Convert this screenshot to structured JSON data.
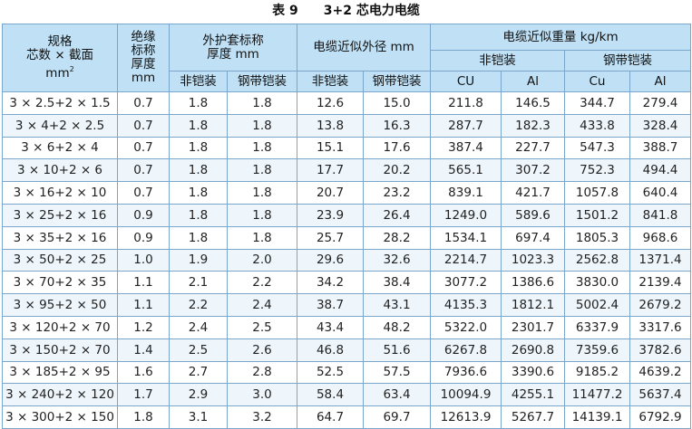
{
  "caption": {
    "number": "表 9",
    "text": "3+2 芯电力电缆"
  },
  "headers": {
    "spec_line1": "规格",
    "spec_line2": "芯数 × 截面",
    "spec_line3": "mm",
    "spec_unit_sup": "2",
    "insul_line1": "绝缘",
    "insul_line2": "标称",
    "insul_line3": "厚度",
    "insul_line4": "mm",
    "sheath_line1": "外护套标称",
    "sheath_line2": "厚度 mm",
    "diameter": "电缆近似外径 mm",
    "weight": "电缆近似重量 kg/km",
    "unarmored": "非铠装",
    "armored": "钢带铠装",
    "cu_upper": "CU",
    "al": "Al",
    "cu_mixed": "Cu"
  },
  "rows": [
    [
      "3 × 2.5+2 × 1.5",
      "0.7",
      "1.8",
      "1.8",
      "12.6",
      "15.0",
      "211.8",
      "146.5",
      "344.7",
      "279.4"
    ],
    [
      "3 × 4+2 × 2.5",
      "0.7",
      "1.8",
      "1.8",
      "13.8",
      "16.3",
      "287.7",
      "182.3",
      "433.8",
      "328.4"
    ],
    [
      "3 × 6+2 × 4",
      "0.7",
      "1.8",
      "1.8",
      "15.1",
      "17.6",
      "387.4",
      "227.7",
      "547.3",
      "388.7"
    ],
    [
      "3 × 10+2 × 6",
      "0.7",
      "1.8",
      "1.8",
      "17.7",
      "20.2",
      "565.1",
      "307.2",
      "752.3",
      "494.4"
    ],
    [
      "3 × 16+2 × 10",
      "0.7",
      "1.8",
      "1.8",
      "20.7",
      "23.2",
      "839.1",
      "421.7",
      "1057.8",
      "640.4"
    ],
    [
      "3 × 25+2 × 16",
      "0.9",
      "1.8",
      "1.8",
      "23.9",
      "26.4",
      "1249.0",
      "589.6",
      "1501.2",
      "841.8"
    ],
    [
      "3 × 35+2 × 16",
      "0.9",
      "1.8",
      "1.8",
      "25.7",
      "28.2",
      "1534.1",
      "697.4",
      "1805.3",
      "968.6"
    ],
    [
      "3 × 50+2 × 25",
      "1.0",
      "1.9",
      "2.0",
      "29.6",
      "32.6",
      "2214.7",
      "1023.3",
      "2562.8",
      "1371.4"
    ],
    [
      "3 × 70+2 × 35",
      "1.1",
      "2.1",
      "2.2",
      "34.2",
      "38.4",
      "3077.2",
      "1386.6",
      "3830.0",
      "2139.4"
    ],
    [
      "3 × 95+2 × 50",
      "1.1",
      "2.2",
      "2.4",
      "38.7",
      "43.1",
      "4135.3",
      "1812.1",
      "5002.4",
      "2679.2"
    ],
    [
      "3 × 120+2 × 70",
      "1.2",
      "2.4",
      "2.5",
      "43.4",
      "48.2",
      "5322.0",
      "2301.7",
      "6337.9",
      "3317.6"
    ],
    [
      "3 × 150+2 × 70",
      "1.4",
      "2.5",
      "2.6",
      "46.8",
      "51.6",
      "6267.8",
      "2690.8",
      "7359.6",
      "3782.6"
    ],
    [
      "3 × 185+2 × 95",
      "1.6",
      "2.7",
      "2.8",
      "52.5",
      "57.5",
      "7936.6",
      "3390.6",
      "9185.2",
      "4639.2"
    ],
    [
      "3 × 240+2 × 120",
      "1.7",
      "2.9",
      "3.0",
      "58.4",
      "63.4",
      "10094.9",
      "4255.1",
      "11477.2",
      "5637.4"
    ],
    [
      "3 × 300+2 × 150",
      "1.8",
      "3.1",
      "3.2",
      "64.7",
      "69.7",
      "12613.9",
      "5267.7",
      "14139.1",
      "6792.9"
    ]
  ]
}
